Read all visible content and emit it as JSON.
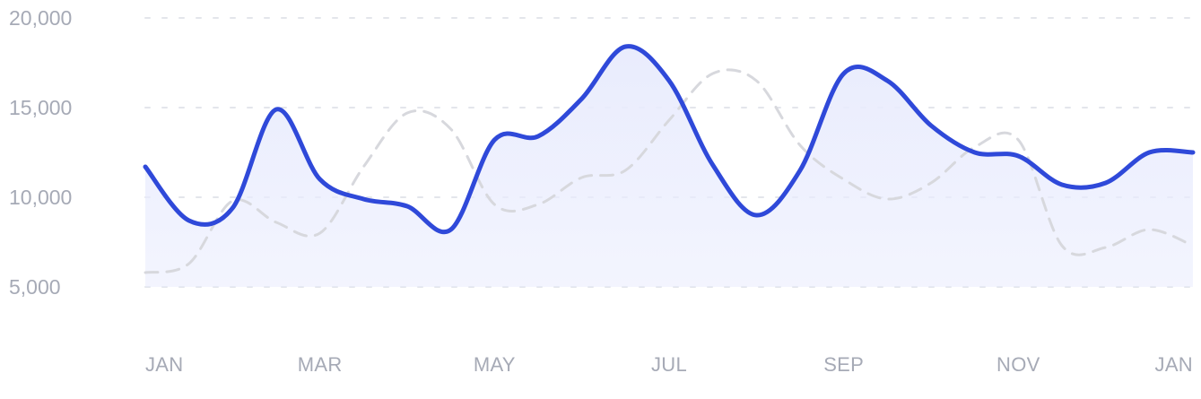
{
  "chart_data": {
    "type": "line",
    "x": [
      0,
      0.5,
      1,
      1.5,
      2,
      2.5,
      3,
      3.5,
      4,
      4.5,
      5,
      5.5,
      6,
      6.5,
      7,
      7.5,
      8,
      8.5,
      9,
      9.5,
      10,
      10.5,
      11,
      11.5,
      12
    ],
    "x_ticks": [
      {
        "x": 0,
        "label": "JAN"
      },
      {
        "x": 2,
        "label": "MAR"
      },
      {
        "x": 4,
        "label": "MAY"
      },
      {
        "x": 6,
        "label": "JUL"
      },
      {
        "x": 8,
        "label": "SEP"
      },
      {
        "x": 10,
        "label": "NOV"
      },
      {
        "x": 12,
        "label": "JAN"
      }
    ],
    "y_ticks": [
      {
        "value": 5000,
        "label": "5,000"
      },
      {
        "value": 10000,
        "label": "10,000"
      },
      {
        "value": 15000,
        "label": "15,000"
      },
      {
        "value": 20000,
        "label": "20,000"
      }
    ],
    "ylim": [
      5000,
      20000
    ],
    "xlim": [
      0,
      12
    ],
    "grid": true,
    "series": [
      {
        "style": "solid",
        "color": "#2f49d9",
        "fill": "#e9ecfd",
        "values": [
          11700,
          8700,
          9400,
          14900,
          11000,
          9900,
          9500,
          8200,
          13200,
          13400,
          15500,
          18400,
          16500,
          11800,
          9000,
          11500,
          16900,
          16500,
          14000,
          12500,
          12300,
          10700,
          10800,
          12500,
          12500
        ]
      },
      {
        "style": "dashed",
        "color": "#d7d8dd",
        "values": [
          5800,
          6300,
          9800,
          8600,
          8000,
          11700,
          14700,
          13800,
          9600,
          9600,
          11100,
          11500,
          14300,
          16900,
          16500,
          12900,
          11000,
          9900,
          10800,
          12800,
          13200,
          7300,
          7200,
          8200,
          7300
        ]
      }
    ]
  }
}
